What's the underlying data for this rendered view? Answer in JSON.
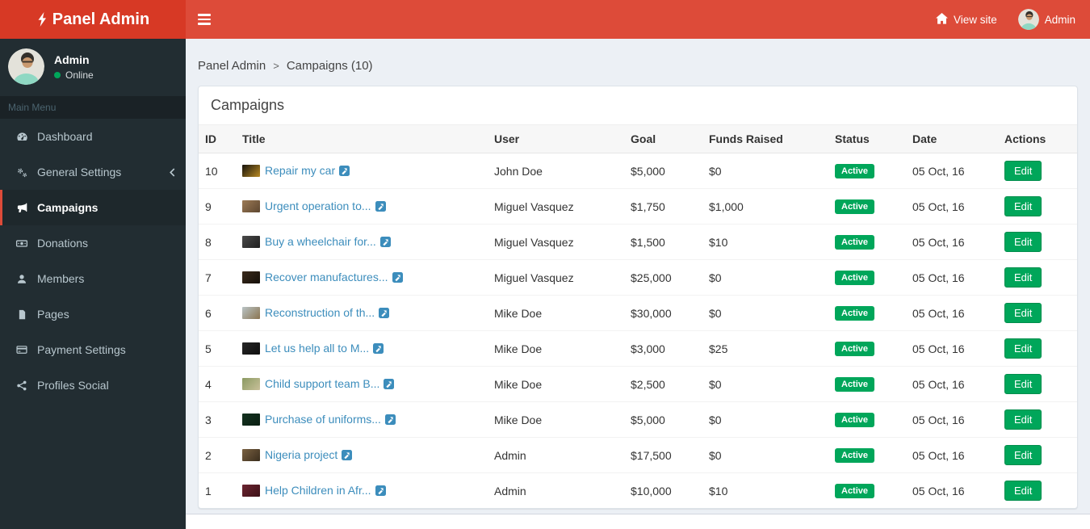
{
  "colors": {
    "navbar": "#dd4b39",
    "logo_bg": "#d73925",
    "sidebar_bg": "#222d32",
    "active_border": "#dd4b39",
    "green": "#00a65a",
    "link_blue": "#3c8dbc"
  },
  "header": {
    "brand": "Panel Admin",
    "view_site_label": "View site",
    "user_label": "Admin"
  },
  "sidebar": {
    "user": {
      "name": "Admin",
      "status": "Online"
    },
    "section_label": "Main Menu",
    "items": [
      {
        "label": "Dashboard",
        "icon": "dashboard-icon",
        "active": false,
        "chevron": false
      },
      {
        "label": "General Settings",
        "icon": "gears-icon",
        "active": false,
        "chevron": true
      },
      {
        "label": "Campaigns",
        "icon": "bullhorn-icon",
        "active": true,
        "chevron": false
      },
      {
        "label": "Donations",
        "icon": "money-icon",
        "active": false,
        "chevron": false
      },
      {
        "label": "Members",
        "icon": "user-icon",
        "active": false,
        "chevron": false
      },
      {
        "label": "Pages",
        "icon": "file-icon",
        "active": false,
        "chevron": false
      },
      {
        "label": "Payment Settings",
        "icon": "credit-card-icon",
        "active": false,
        "chevron": false
      },
      {
        "label": "Profiles Social",
        "icon": "share-icon",
        "active": false,
        "chevron": false
      }
    ]
  },
  "breadcrumb": {
    "items": [
      "Panel Admin",
      "Campaigns (10)"
    ],
    "separator": ">"
  },
  "campaigns": {
    "box_title": "Campaigns",
    "columns": [
      "ID",
      "Title",
      "User",
      "Goal",
      "Funds Raised",
      "Status",
      "Date",
      "Actions"
    ],
    "rows": [
      {
        "id": "10",
        "title": "Repair my car",
        "user": "John Doe",
        "goal": "$5,000",
        "funds": "$0",
        "status": "Active",
        "date": "05 Oct, 16",
        "action": "Edit",
        "thumb": [
          "#15120c",
          "#b98a23"
        ]
      },
      {
        "id": "9",
        "title": "Urgent operation to...",
        "user": "Miguel Vasquez",
        "goal": "$1,750",
        "funds": "$1,000",
        "status": "Active",
        "date": "05 Oct, 16",
        "action": "Edit",
        "thumb": [
          "#9c7a55",
          "#5d4630"
        ]
      },
      {
        "id": "8",
        "title": "Buy a wheelchair for...",
        "user": "Miguel Vasquez",
        "goal": "$1,500",
        "funds": "$10",
        "status": "Active",
        "date": "05 Oct, 16",
        "action": "Edit",
        "thumb": [
          "#4a4a4a",
          "#1f1f1f"
        ]
      },
      {
        "id": "7",
        "title": "Recover manufactures...",
        "user": "Miguel Vasquez",
        "goal": "$25,000",
        "funds": "$0",
        "status": "Active",
        "date": "05 Oct, 16",
        "action": "Edit",
        "thumb": [
          "#3a2a1c",
          "#151009"
        ]
      },
      {
        "id": "6",
        "title": "Reconstruction of th...",
        "user": "Mike Doe",
        "goal": "$30,000",
        "funds": "$0",
        "status": "Active",
        "date": "05 Oct, 16",
        "action": "Edit",
        "thumb": [
          "#b9c4c6",
          "#8a744f"
        ]
      },
      {
        "id": "5",
        "title": "Let us help all to M...",
        "user": "Mike Doe",
        "goal": "$3,000",
        "funds": "$25",
        "status": "Active",
        "date": "05 Oct, 16",
        "action": "Edit",
        "thumb": [
          "#262626",
          "#0f0f0f"
        ]
      },
      {
        "id": "4",
        "title": "Child support team B...",
        "user": "Mike Doe",
        "goal": "$2,500",
        "funds": "$0",
        "status": "Active",
        "date": "05 Oct, 16",
        "action": "Edit",
        "thumb": [
          "#8a9a62",
          "#c9c09a"
        ]
      },
      {
        "id": "3",
        "title": "Purchase of uniforms...",
        "user": "Mike Doe",
        "goal": "$5,000",
        "funds": "$0",
        "status": "Active",
        "date": "05 Oct, 16",
        "action": "Edit",
        "thumb": [
          "#14321f",
          "#0a1f12"
        ]
      },
      {
        "id": "2",
        "title": "Nigeria project",
        "user": "Admin",
        "goal": "$17,500",
        "funds": "$0",
        "status": "Active",
        "date": "05 Oct, 16",
        "action": "Edit",
        "thumb": [
          "#7a6142",
          "#3a2d1d"
        ]
      },
      {
        "id": "1",
        "title": "Help Children in Afr...",
        "user": "Admin",
        "goal": "$10,000",
        "funds": "$10",
        "status": "Active",
        "date": "05 Oct, 16",
        "action": "Edit",
        "thumb": [
          "#6b2430",
          "#3d1118"
        ]
      }
    ]
  }
}
